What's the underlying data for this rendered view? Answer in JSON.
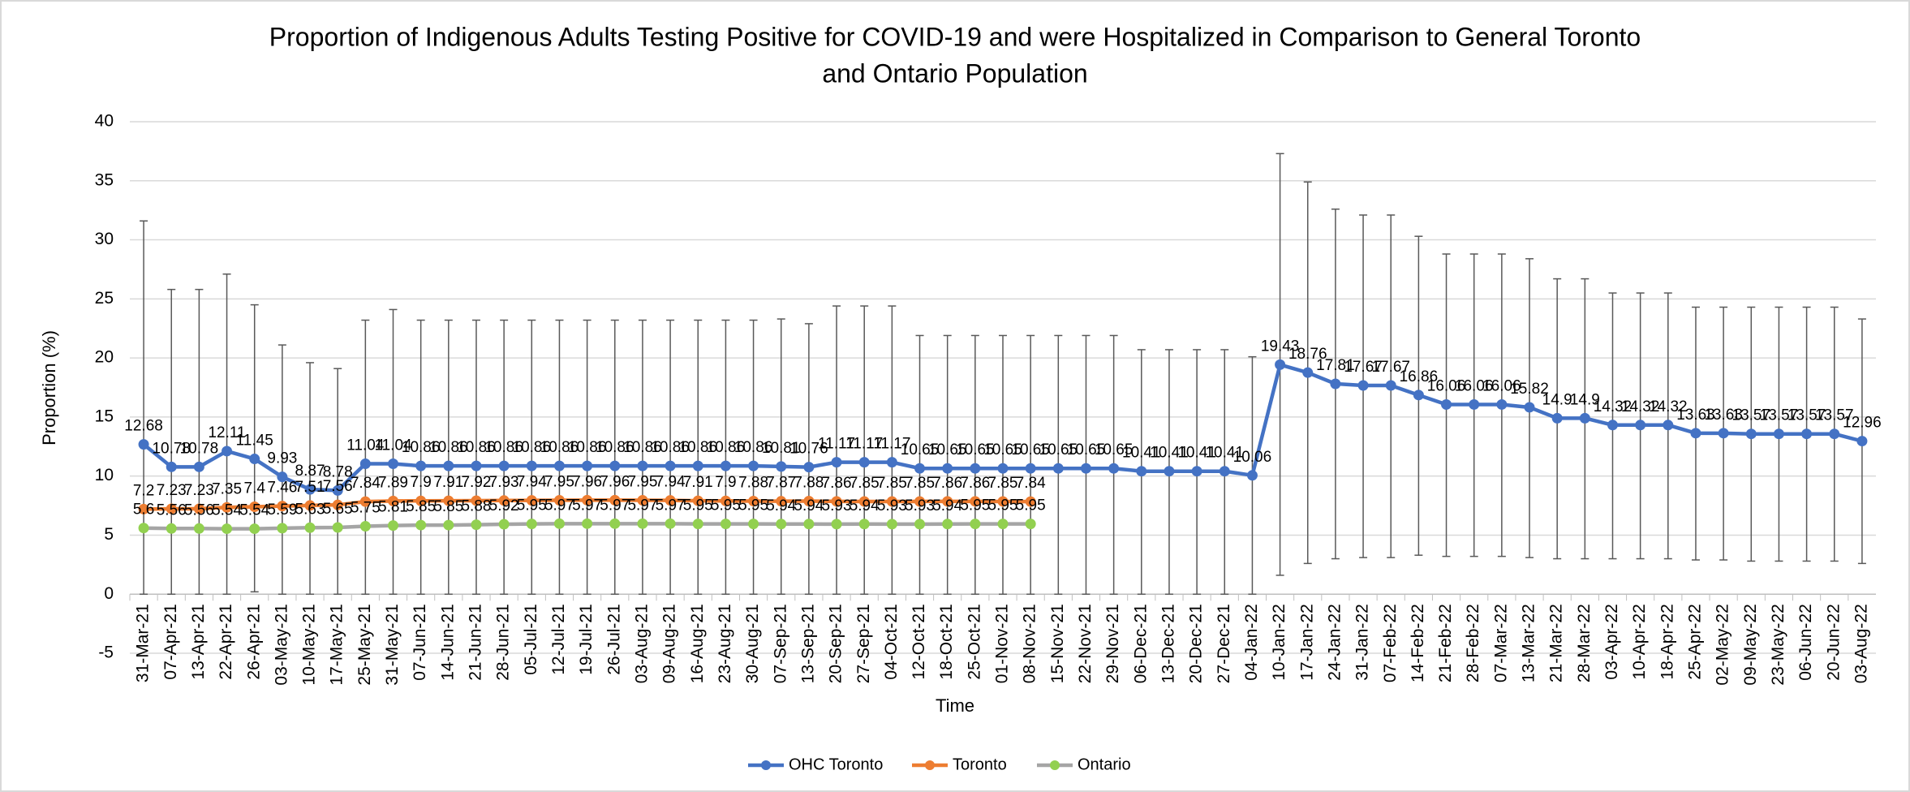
{
  "chart_data": {
    "type": "line",
    "title": "Proportion of Indigenous Adults Testing Positive for COVID-19 and were Hospitalized in Comparison to General Toronto",
    "subtitle": "and Ontario Population",
    "xlabel": "Time",
    "ylabel": "Proportion (%)",
    "ylim": [
      -5,
      40
    ],
    "yticks": [
      -5,
      0,
      5,
      10,
      15,
      20,
      25,
      30,
      35,
      40
    ],
    "grid": true,
    "legend": "bottom",
    "categories": [
      "31-Mar-21",
      "07-Apr-21",
      "13-Apr-21",
      "22-Apr-21",
      "26-Apr-21",
      "03-May-21",
      "10-May-21",
      "17-May-21",
      "25-May-21",
      "31-May-21",
      "07-Jun-21",
      "14-Jun-21",
      "21-Jun-21",
      "28-Jun-21",
      "05-Jul-21",
      "12-Jul-21",
      "19-Jul-21",
      "26-Jul-21",
      "03-Aug-21",
      "09-Aug-21",
      "16-Aug-21",
      "23-Aug-21",
      "30-Aug-21",
      "07-Sep-21",
      "13-Sep-21",
      "20-Sep-21",
      "27-Sep-21",
      "04-Oct-21",
      "12-Oct-21",
      "18-Oct-21",
      "25-Oct-21",
      "01-Nov-21",
      "08-Nov-21",
      "15-Nov-21",
      "22-Nov-21",
      "29-Nov-21",
      "06-Dec-21",
      "13-Dec-21",
      "20-Dec-21",
      "27-Dec-21",
      "04-Jan-22",
      "10-Jan-22",
      "17-Jan-22",
      "24-Jan-22",
      "31-Jan-22",
      "07-Feb-22",
      "14-Feb-22",
      "21-Feb-22",
      "28-Feb-22",
      "07-Mar-22",
      "13-Mar-22",
      "21-Mar-22",
      "28-Mar-22",
      "03-Apr-22",
      "10-Apr-22",
      "18-Apr-22",
      "25-Apr-22",
      "02-May-22",
      "09-May-22",
      "23-May-22",
      "06-Jun-22",
      "20-Jun-22",
      "03-Aug-22"
    ],
    "series": [
      {
        "name": "OHC Toronto",
        "color": "#4472c4",
        "marker_color": "#4472c4",
        "error_color": "#595959",
        "values": [
          12.68,
          10.78,
          10.78,
          12.11,
          11.45,
          9.93,
          8.87,
          8.78,
          11.04,
          11.04,
          10.86,
          10.86,
          10.86,
          10.86,
          10.86,
          10.86,
          10.86,
          10.86,
          10.86,
          10.86,
          10.86,
          10.86,
          10.86,
          10.81,
          10.76,
          11.17,
          11.17,
          11.17,
          10.65,
          10.65,
          10.65,
          10.65,
          10.65,
          10.65,
          10.65,
          10.65,
          10.41,
          10.41,
          10.41,
          10.41,
          10.06,
          19.43,
          18.76,
          17.81,
          17.67,
          17.67,
          16.86,
          16.06,
          16.06,
          16.06,
          15.82,
          14.9,
          14.9,
          14.32,
          14.32,
          14.32,
          13.63,
          13.63,
          13.57,
          13.57,
          13.57,
          13.57,
          12.96
        ],
        "lower": [
          0,
          0,
          0,
          0,
          0.2,
          0,
          0,
          0,
          0,
          0,
          0,
          0,
          0,
          0,
          0,
          0,
          0,
          0,
          0,
          0,
          0,
          0,
          0,
          0,
          0,
          0,
          0,
          0,
          0,
          0,
          0,
          0,
          0,
          0,
          0,
          0,
          0,
          0,
          0,
          0,
          0,
          1.6,
          2.6,
          3,
          3.1,
          3.1,
          3.3,
          3.2,
          3.2,
          3.2,
          3.1,
          3,
          3,
          3,
          3,
          3,
          2.9,
          2.9,
          2.8,
          2.8,
          2.8,
          2.8,
          2.6
        ],
        "upper": [
          31.6,
          25.8,
          25.8,
          27.1,
          24.5,
          21.1,
          19.6,
          19.1,
          23.2,
          24.1,
          23.2,
          23.2,
          23.2,
          23.2,
          23.2,
          23.2,
          23.2,
          23.2,
          23.2,
          23.2,
          23.2,
          23.2,
          23.2,
          23.3,
          22.9,
          24.4,
          24.4,
          24.4,
          21.9,
          21.9,
          21.9,
          21.9,
          21.9,
          21.9,
          21.9,
          21.9,
          20.7,
          20.7,
          20.7,
          20.7,
          20.1,
          37.3,
          34.9,
          32.6,
          32.1,
          32.1,
          30.3,
          28.8,
          28.8,
          28.8,
          28.4,
          26.7,
          26.7,
          25.5,
          25.5,
          25.5,
          24.3,
          24.3,
          24.3,
          24.3,
          24.3,
          24.3,
          23.3
        ]
      },
      {
        "name": "Toronto",
        "color": "#ed7d31",
        "marker_color": "#ed7d31",
        "values": [
          7.2,
          7.23,
          7.23,
          7.35,
          7.4,
          7.46,
          7.51,
          7.56,
          7.84,
          7.89,
          7.9,
          7.91,
          7.92,
          7.93,
          7.94,
          7.95,
          7.96,
          7.96,
          7.95,
          7.94,
          7.91,
          7.9,
          7.88,
          7.87,
          7.88,
          7.86,
          7.85,
          7.85,
          7.85,
          7.86,
          7.86,
          7.85,
          7.84,
          null,
          null,
          null,
          null,
          null,
          null,
          null,
          null,
          null,
          null,
          null,
          null,
          null,
          null,
          null,
          null,
          null,
          null,
          null,
          null,
          null,
          null,
          null,
          null,
          null,
          null,
          null,
          null,
          null,
          null
        ]
      },
      {
        "name": "Ontario",
        "color": "#a5a5a5",
        "marker_color": "#92d050",
        "values": [
          5.6,
          5.56,
          5.56,
          5.54,
          5.54,
          5.59,
          5.63,
          5.65,
          5.75,
          5.81,
          5.85,
          5.85,
          5.88,
          5.92,
          5.95,
          5.97,
          5.97,
          5.97,
          5.97,
          5.97,
          5.95,
          5.95,
          5.95,
          5.94,
          5.94,
          5.93,
          5.94,
          5.93,
          5.93,
          5.94,
          5.95,
          5.95,
          5.95,
          null,
          null,
          null,
          null,
          null,
          null,
          null,
          null,
          null,
          null,
          null,
          null,
          null,
          null,
          null,
          null,
          null,
          null,
          null,
          null,
          null,
          null,
          null,
          null,
          null,
          null,
          null,
          null,
          null,
          null
        ]
      }
    ]
  }
}
